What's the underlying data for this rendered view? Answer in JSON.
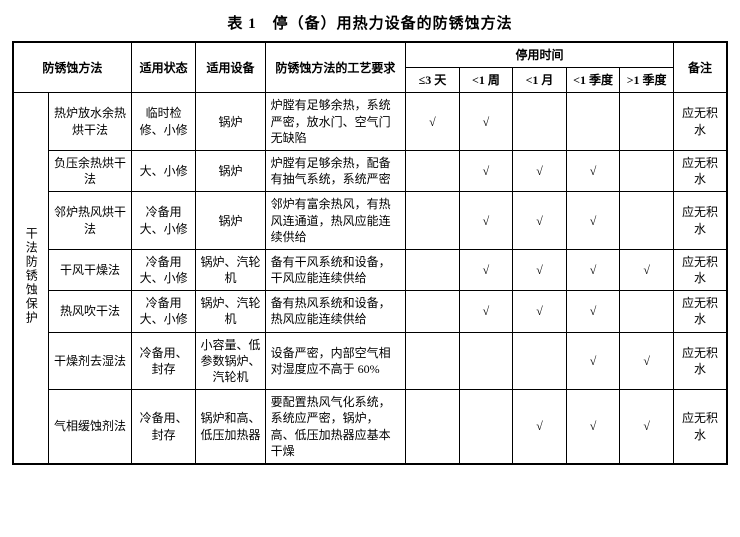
{
  "title": "表 1　停（备）用热力设备的防锈蚀方法",
  "header": {
    "h_method": "防锈蚀方法",
    "h_state": "适用状态",
    "h_equip": "适用设备",
    "h_req": "防锈蚀方法的工艺要求",
    "h_time_group": "停用时间",
    "h_note": "备注",
    "t1": "≤3 天",
    "t2": "<1 周",
    "t3": "<1 月",
    "t4": "<1 季度",
    "t5": ">1 季度"
  },
  "group_label": "干法防锈蚀保护",
  "check": "√",
  "rows": [
    {
      "sub": "热炉放水余热烘干法",
      "state": "临时检修、小修",
      "equip": "锅炉",
      "req": "炉膛有足够余热，系统严密，放水门、空气门无缺陷",
      "c": [
        true,
        true,
        false,
        false,
        false
      ],
      "note": "应无积水"
    },
    {
      "sub": "负压余热烘干法",
      "state": "大、小修",
      "equip": "锅炉",
      "req": "炉膛有足够余热，配备有抽气系统，系统严密",
      "c": [
        false,
        true,
        true,
        true,
        false
      ],
      "note": "应无积水"
    },
    {
      "sub": "邻炉热风烘干法",
      "state": "冷备用大、小修",
      "equip": "锅炉",
      "req": "邻炉有富余热风，有热风连通道，热风应能连续供给",
      "c": [
        false,
        true,
        true,
        true,
        false
      ],
      "note": "应无积水"
    },
    {
      "sub": "干风干燥法",
      "state": "冷备用大、小修",
      "equip": "锅炉、汽轮机",
      "req": "备有干风系统和设备，干风应能连续供给",
      "c": [
        false,
        true,
        true,
        true,
        true
      ],
      "note": "应无积水"
    },
    {
      "sub": "热风吹干法",
      "state": "冷备用大、小修",
      "equip": "锅炉、汽轮机",
      "req": "备有热风系统和设备，热风应能连续供给",
      "c": [
        false,
        true,
        true,
        true,
        false
      ],
      "note": "应无积水"
    },
    {
      "sub": "干燥剂去湿法",
      "state": "冷备用、封存",
      "equip": "小容量、低参数锅炉、汽轮机",
      "req": "设备严密，内部空气相对湿度应不高于 60%",
      "c": [
        false,
        false,
        false,
        true,
        true
      ],
      "note": "应无积水"
    },
    {
      "sub": "气相缓蚀剂法",
      "state": "冷备用、封存",
      "equip": "锅炉和高、低压加热器",
      "req": "要配置热风气化系统，系统应严密，锅炉，高、低压加热器应基本干燥",
      "c": [
        false,
        false,
        true,
        true,
        true
      ],
      "note": "应无积水"
    }
  ]
}
